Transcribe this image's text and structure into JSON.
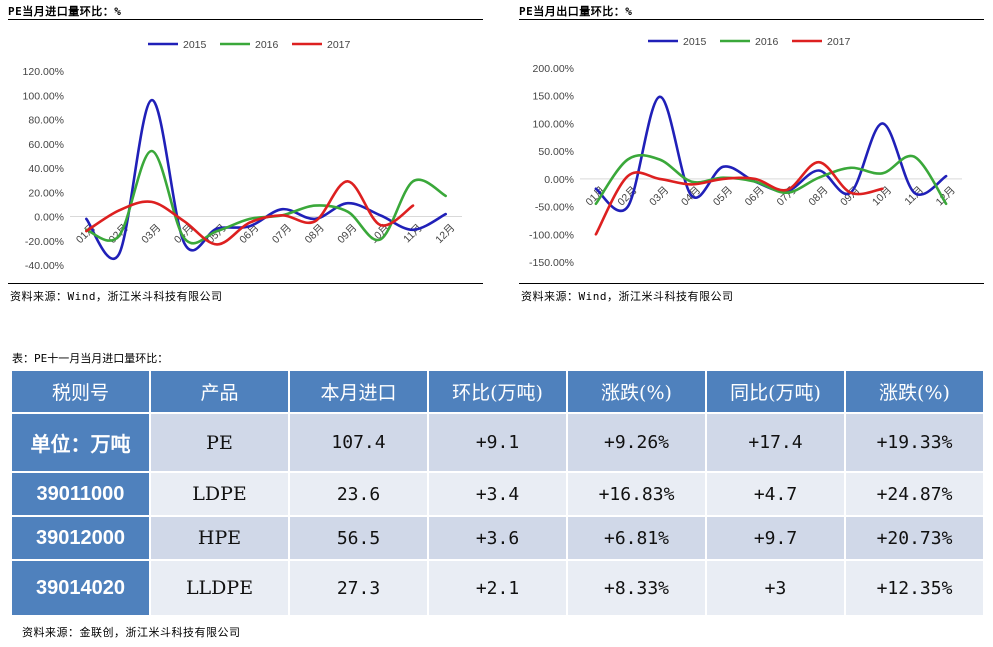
{
  "charts": {
    "left": {
      "title": "PE当月进口量环比：%",
      "source": "资料来源：Wind，浙江米斗科技有限公司"
    },
    "right": {
      "title": "PE当月出口量环比：%",
      "source": "资料来源：Wind，浙江米斗科技有限公司"
    }
  },
  "chart_data": [
    {
      "type": "line",
      "title": "PE当月进口量环比：%",
      "categories": [
        "01月",
        "02月",
        "03月",
        "04月",
        "05月",
        "06月",
        "07月",
        "08月",
        "09月",
        "10月",
        "11月",
        "12月"
      ],
      "series": [
        {
          "name": "2015",
          "color": "#2020b8",
          "values": [
            -2,
            -31,
            96,
            -22,
            -10,
            -8,
            6,
            -2,
            11,
            1,
            -11,
            2
          ]
        },
        {
          "name": "2016",
          "color": "#3aa83a",
          "values": [
            -11,
            -16,
            54,
            -18,
            -12,
            -2,
            1,
            9,
            4,
            -19,
            29,
            17
          ]
        },
        {
          "name": "2017",
          "color": "#dd2020",
          "values": [
            -12,
            5,
            12,
            -4,
            -23,
            -5,
            1,
            -4,
            29,
            -7,
            9,
            null
          ]
        }
      ],
      "ylim": [
        -40,
        120
      ],
      "yticks": [
        "-40.00%",
        "-20.00%",
        "0.00%",
        "20.00%",
        "40.00%",
        "60.00%",
        "80.00%",
        "100.00%",
        "120.00%"
      ],
      "legend": "top-center"
    },
    {
      "type": "line",
      "title": "PE当月出口量环比：%",
      "categories": [
        "01月",
        "02月",
        "03月",
        "04月",
        "05月",
        "06月",
        "07月",
        "08月",
        "09月",
        "10月",
        "11月",
        "12月"
      ],
      "series": [
        {
          "name": "2015",
          "color": "#2020b8",
          "values": [
            -18,
            -50,
            148,
            -30,
            22,
            -5,
            -22,
            15,
            -25,
            100,
            -25,
            5
          ]
        },
        {
          "name": "2016",
          "color": "#3aa83a",
          "values": [
            -45,
            35,
            35,
            -5,
            2,
            -5,
            -25,
            2,
            20,
            10,
            40,
            -45
          ]
        },
        {
          "name": "2017",
          "color": "#dd2020",
          "values": [
            -100,
            5,
            0,
            -10,
            0,
            0,
            -20,
            30,
            -25,
            -18,
            null,
            null
          ]
        }
      ],
      "ylim": [
        -150,
        200
      ],
      "yticks": [
        "-150.00%",
        "-100.00%",
        "-50.00%",
        "0.00%",
        "50.00%",
        "100.00%",
        "150.00%",
        "200.00%"
      ],
      "legend": "top-center"
    }
  ],
  "table": {
    "title": "表：PE十一月当月进口量环比：",
    "headers": [
      "税则号",
      "产品",
      "本月进口",
      "环比(万吨)",
      "涨跌(%)",
      "同比(万吨)",
      "涨跌(%)"
    ],
    "rows": [
      [
        "单位：万吨",
        "PE",
        "107.4",
        "+9.1",
        "+9.26%",
        "+17.4",
        "+19.33%"
      ],
      [
        "39011000",
        "LDPE",
        "23.6",
        "+3.4",
        "+16.83%",
        "+4.7",
        "+24.87%"
      ],
      [
        "39012000",
        "HPE",
        "56.5",
        "+3.6",
        "+6.81%",
        "+9.7",
        "+20.73%"
      ],
      [
        "39014020",
        "LLDPE",
        "27.3",
        "+2.1",
        "+8.33%",
        "+3",
        "+12.35%"
      ]
    ],
    "source": "资料来源：金联创，浙江米斗科技有限公司"
  }
}
